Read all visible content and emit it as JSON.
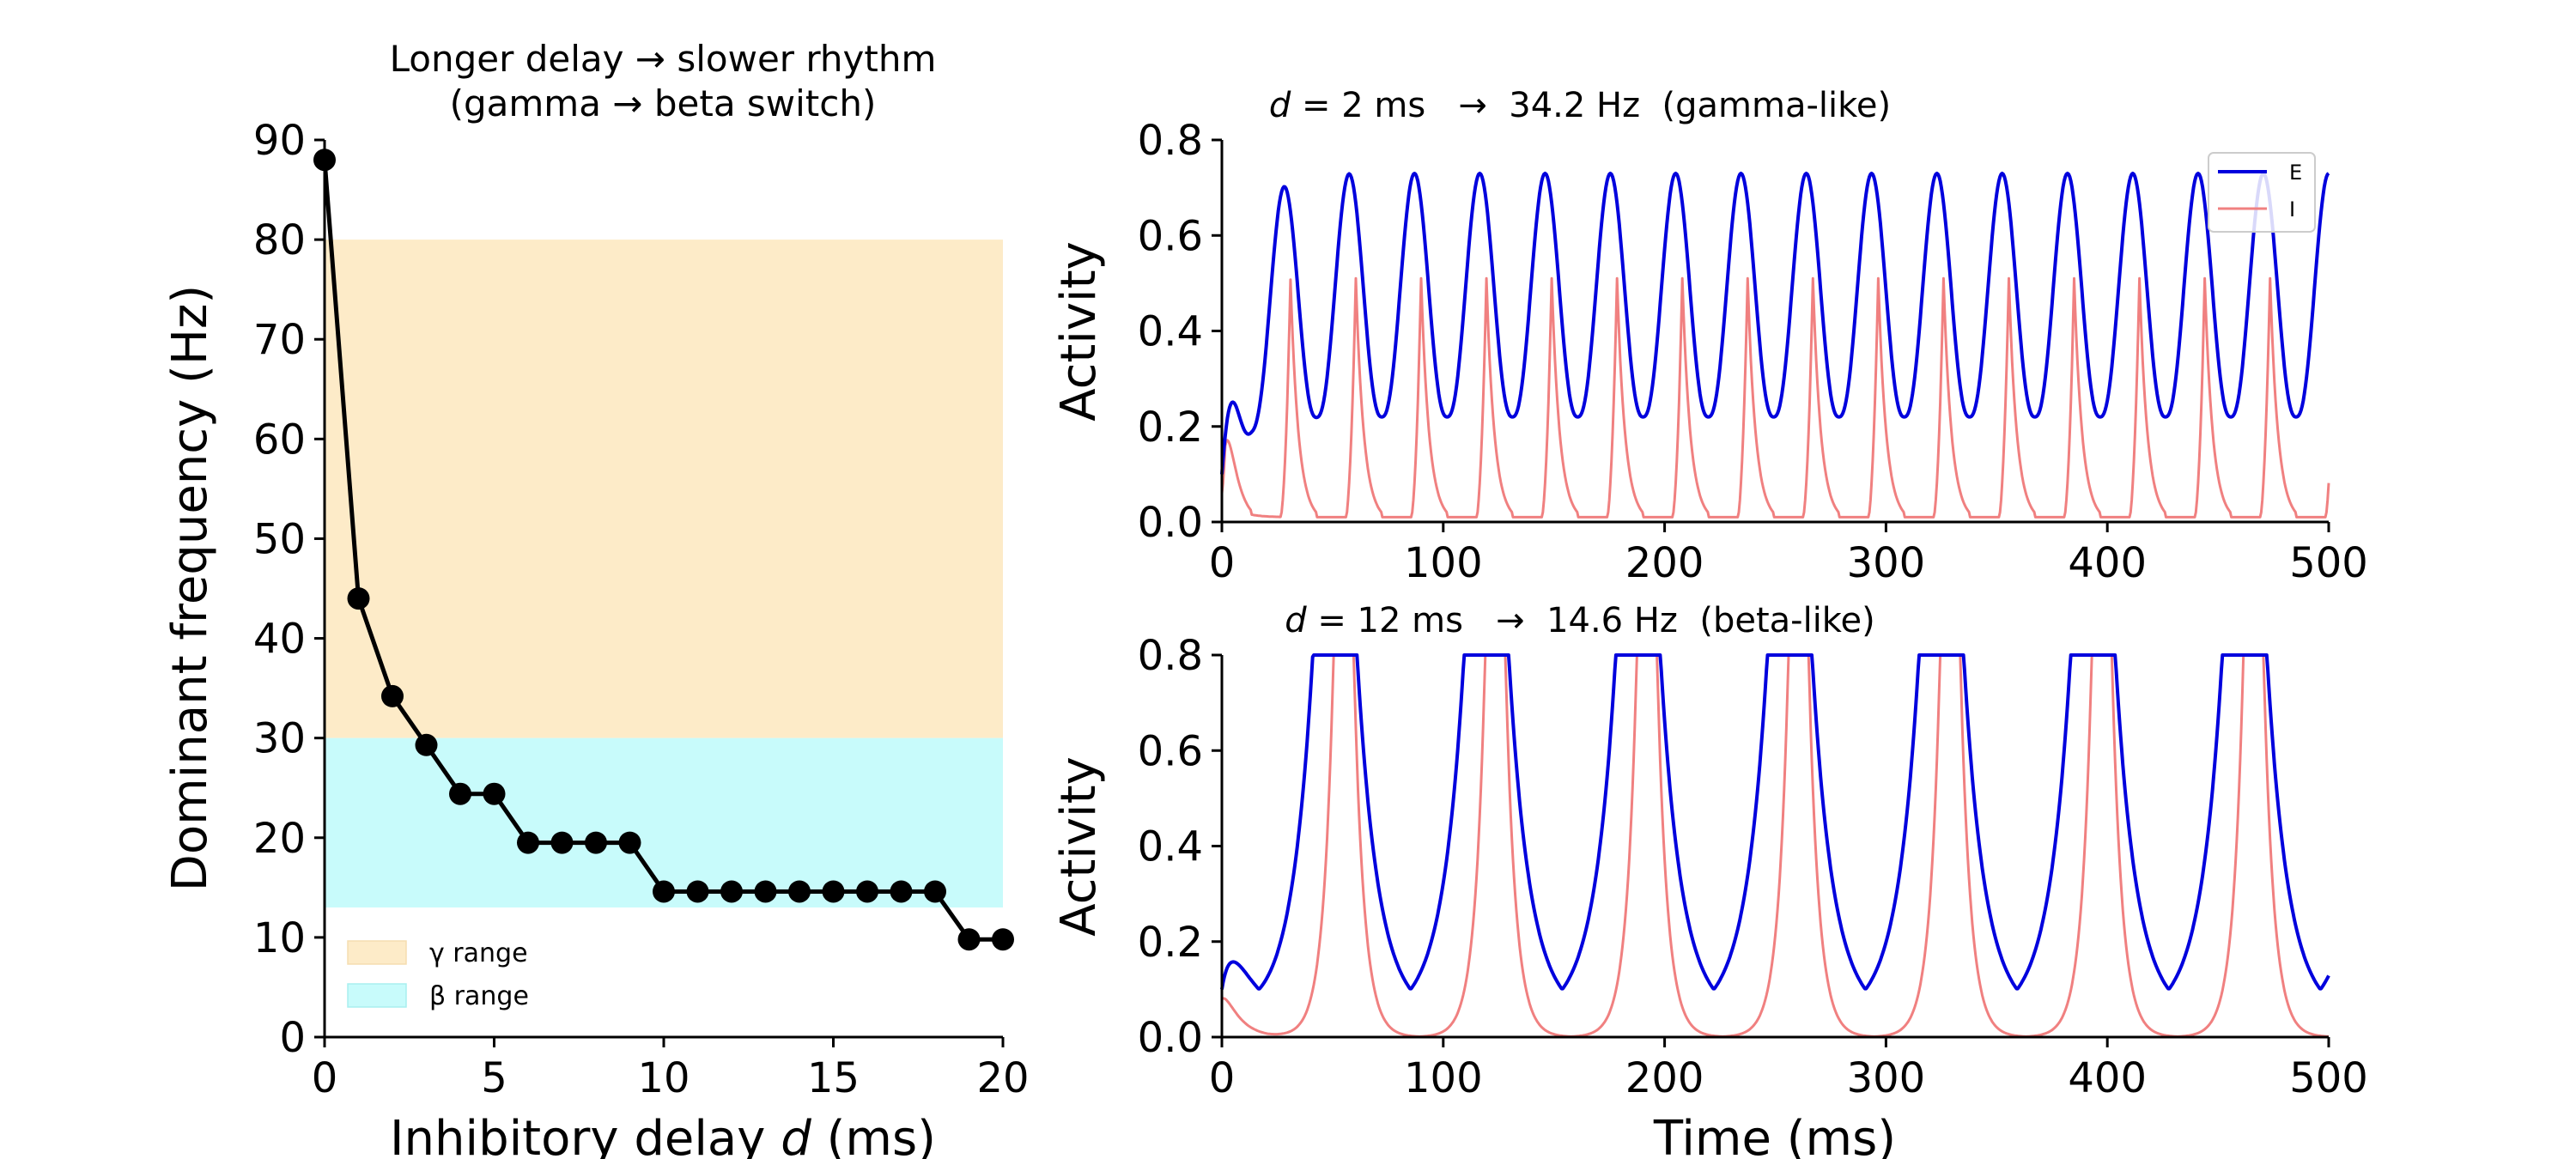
{
  "chart_data": [
    {
      "type": "line",
      "title_line1": "Longer delay → slower rhythm",
      "title_line2": "(gamma → beta switch)",
      "xlabel_prefix": "Inhibitory delay",
      "xlabel_var": "d",
      "xlabel_suffix": "(ms)",
      "ylabel": "Dominant frequency (Hz)",
      "xlim": [
        0,
        20
      ],
      "ylim": [
        0,
        90
      ],
      "xticks": [
        0,
        5,
        10,
        15,
        20
      ],
      "yticks": [
        0,
        10,
        20,
        30,
        40,
        50,
        60,
        70,
        80,
        90
      ],
      "grid": false,
      "legend_position": "lower-left",
      "bands": [
        {
          "name": "γ range",
          "from": 30,
          "to": 80,
          "color": "#fdebc8"
        },
        {
          "name": "β range",
          "from": 13,
          "to": 30,
          "color": "#c8fbfb"
        }
      ],
      "series": [
        {
          "x": [
            0,
            1,
            2,
            3,
            4,
            5,
            6,
            7,
            8,
            9,
            10,
            11,
            12,
            13,
            14,
            15,
            16,
            17,
            18,
            19,
            20
          ],
          "values": [
            88,
            44,
            34.2,
            29.3,
            24.4,
            24.4,
            19.5,
            19.5,
            19.5,
            19.5,
            14.6,
            14.6,
            14.6,
            14.6,
            14.6,
            14.6,
            14.6,
            14.6,
            14.6,
            9.8,
            9.8
          ],
          "color": "#000000"
        }
      ]
    },
    {
      "type": "line",
      "title_var": "d",
      "title_rest": " = 2 ms   →  34.2 Hz  (gamma-like)",
      "xlabel": "",
      "ylabel": "Activity",
      "xlim": [
        0,
        500
      ],
      "ylim": [
        0,
        0.8
      ],
      "xticks": [
        0,
        100,
        200,
        300,
        400,
        500
      ],
      "yticks": [
        "0.0",
        "0.2",
        "0.4",
        "0.6",
        "0.8"
      ],
      "grid": false,
      "legend_position": "top-right",
      "period_ms": 29.5,
      "series": [
        {
          "name": "E",
          "color": "#0000dd",
          "initial": 0.1,
          "trough": 0.22,
          "peak": 0.73,
          "first_peak_ms": 28
        },
        {
          "name": "I",
          "color": "#f08080",
          "initial": 0.06,
          "trough": 0.01,
          "peak": 0.51,
          "first_peak_ms": 31
        }
      ]
    },
    {
      "type": "line",
      "title_var": "d",
      "title_rest": " = 12 ms   →  14.6 Hz  (beta-like)",
      "xlabel": "Time (ms)",
      "ylabel": "Activity",
      "xlim": [
        0,
        500
      ],
      "ylim": [
        0,
        0.8
      ],
      "xticks": [
        0,
        100,
        200,
        300,
        400,
        500
      ],
      "yticks": [
        "0.0",
        "0.2",
        "0.4",
        "0.6",
        "0.8"
      ],
      "grid": false,
      "period_ms": 68.5,
      "series": [
        {
          "name": "E",
          "color": "#0000dd",
          "initial": 0.1,
          "trough": 0.04,
          "first_peak_ms": 51
        },
        {
          "name": "I",
          "color": "#f08080",
          "initial": 0.08,
          "trough": 0.0,
          "first_peak_ms": 55
        }
      ]
    }
  ]
}
